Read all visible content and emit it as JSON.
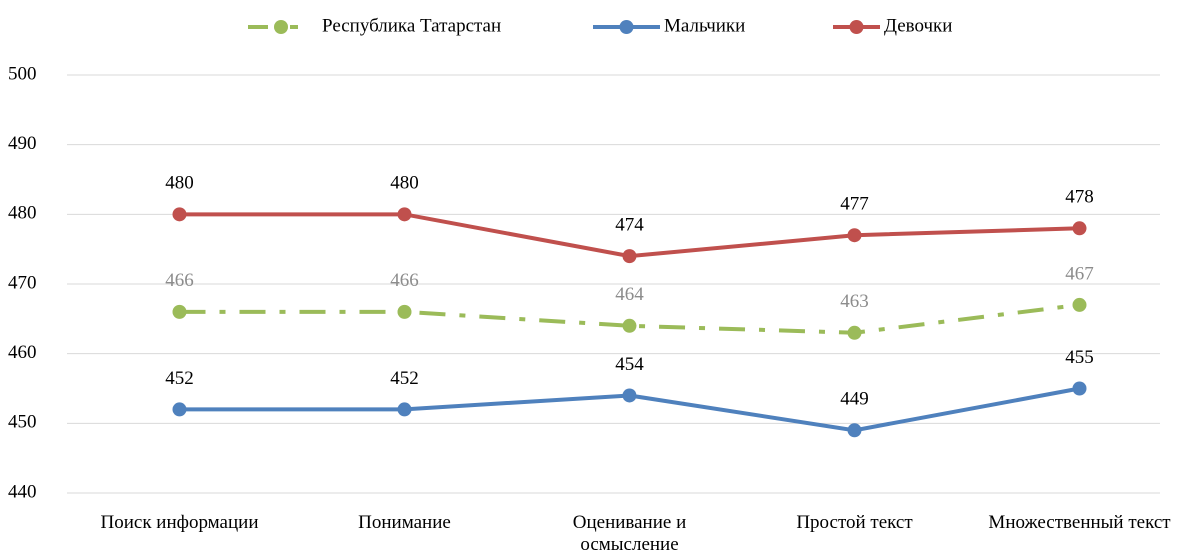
{
  "chart_data": {
    "type": "line",
    "categories": [
      "Поиск информации",
      "Понимание",
      "Оценивание и осмысление",
      "Простой текст",
      "Множественный текст"
    ],
    "series": [
      {
        "name": "Республика Татарстан",
        "color": "#9bbb59",
        "dash": "dash-dot",
        "values": [
          466,
          466,
          464,
          463,
          467
        ]
      },
      {
        "name": "Мальчики",
        "color": "#4f81bd",
        "values": [
          452,
          452,
          454,
          449,
          455
        ]
      },
      {
        "name": "Девочки",
        "color": "#c0504d",
        "values": [
          480,
          480,
          474,
          477,
          478
        ]
      }
    ],
    "ylim": [
      440,
      500
    ],
    "yticks": [
      440,
      450,
      460,
      470,
      480,
      490,
      500
    ],
    "grid": true,
    "legend": "top"
  }
}
